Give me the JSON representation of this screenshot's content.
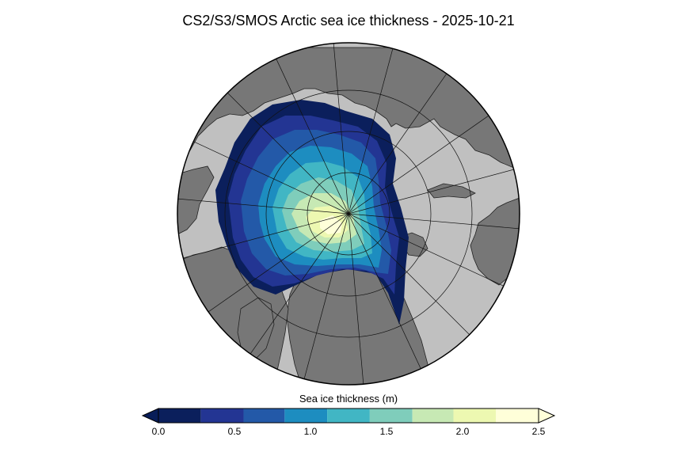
{
  "title": "CS2/S3/SMOS Arctic sea ice thickness - 2025-10-21",
  "colorbar": {
    "label": "Sea ice thickness (m)",
    "ticks": [
      "0.0",
      "0.5",
      "1.0",
      "1.5",
      "2.0",
      "2.5"
    ],
    "range": [
      0.0,
      2.5
    ],
    "extend": "both",
    "under_color": "#081d58",
    "over_color": "#ffffd9",
    "bins": [
      {
        "from": 0.0,
        "to": 0.28,
        "color": "#0b1f5c"
      },
      {
        "from": 0.28,
        "to": 0.56,
        "color": "#233593"
      },
      {
        "from": 0.56,
        "to": 0.83,
        "color": "#2359a8"
      },
      {
        "from": 0.83,
        "to": 1.11,
        "color": "#1d8dc0"
      },
      {
        "from": 1.11,
        "to": 1.39,
        "color": "#41b6c4"
      },
      {
        "from": 1.39,
        "to": 1.67,
        "color": "#7fcdbb"
      },
      {
        "from": 1.67,
        "to": 1.94,
        "color": "#c7e9b4"
      },
      {
        "from": 1.94,
        "to": 2.22,
        "color": "#edf8b1"
      },
      {
        "from": 2.22,
        "to": 2.5,
        "color": "#ffffd9"
      }
    ]
  },
  "map": {
    "projection": "north-polar-stereographic",
    "land_color": "#777777",
    "ocean_color": "#c0c0c0",
    "graticule": true
  }
}
